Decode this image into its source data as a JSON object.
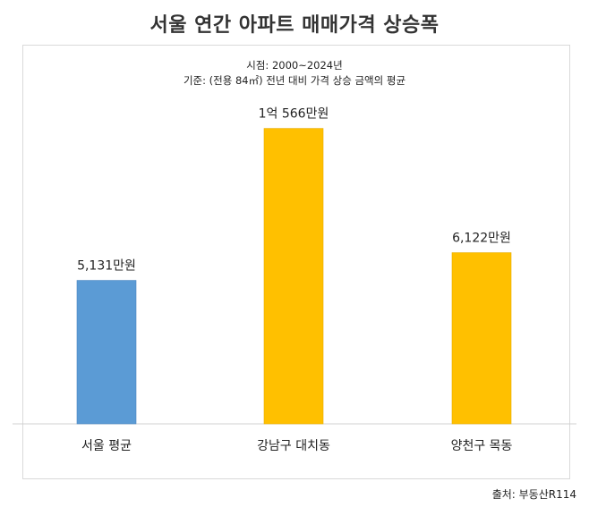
{
  "page": {
    "title": "서울 연간 아파트 매매가격 상승폭",
    "source": "출처: 부동산R114"
  },
  "chart_data": {
    "type": "bar",
    "subtitle_lines": [
      "시점: 2000~2024년",
      "기준: (전용 84㎡) 전년 대비 가격 상승 금액의 평균"
    ],
    "categories": [
      "서울 평균",
      "강남구 대치동",
      "양천구 목동"
    ],
    "values": [
      5131,
      10566,
      6122
    ],
    "data_labels": [
      "5,131만원",
      "1억 566만원",
      "6,122만원"
    ],
    "colors": [
      "#5b9bd5",
      "#ffc000",
      "#ffc000"
    ],
    "unit": "만원",
    "ylim": [
      0,
      12600
    ],
    "grid": false,
    "legend": "none"
  }
}
